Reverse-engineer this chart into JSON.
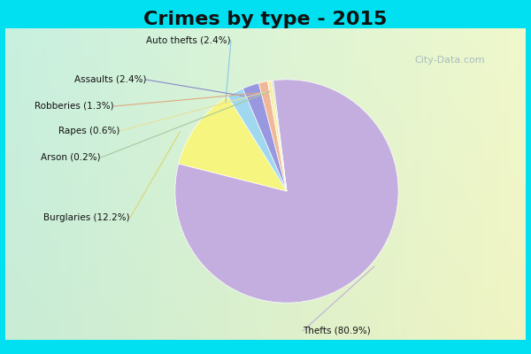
{
  "title": "Crimes by type - 2015",
  "title_fontsize": 16,
  "slices": [
    {
      "label": "Thefts",
      "pct": 80.9,
      "color": "#c4aee0",
      "line_color": "#c0b0d8"
    },
    {
      "label": "Burglaries",
      "pct": 12.2,
      "color": "#f5f580",
      "line_color": "#d8d870"
    },
    {
      "label": "Auto thefts",
      "pct": 2.4,
      "color": "#a0d8f0",
      "line_color": "#88c8e8"
    },
    {
      "label": "Assaults",
      "pct": 2.4,
      "color": "#9898e0",
      "line_color": "#8888cc"
    },
    {
      "label": "Robberies",
      "pct": 1.3,
      "color": "#f0b898",
      "line_color": "#e0a880"
    },
    {
      "label": "Rapes",
      "pct": 0.6,
      "color": "#f8f0a8",
      "line_color": "#e8e098"
    },
    {
      "label": "Arson",
      "pct": 0.2,
      "color": "#b8d8b0",
      "line_color": "#a8c8a0"
    }
  ],
  "label_texts": {
    "Thefts": "Thefts (80.9%)",
    "Burglaries": "Burglaries (12.2%)",
    "Auto thefts": "Auto thefts (2.4%)",
    "Assaults": "Assaults (2.4%)",
    "Robberies": "Robberies (1.3%)",
    "Rapes": "Rapes (0.6%)",
    "Arson": "Arson (0.2%)"
  },
  "cyan_border": "#00e0f0",
  "bg_color_top_left": "#c8f0e0",
  "bg_color_bottom_right": "#e8f8e8",
  "watermark": "City-Data.com",
  "startangle": 97
}
